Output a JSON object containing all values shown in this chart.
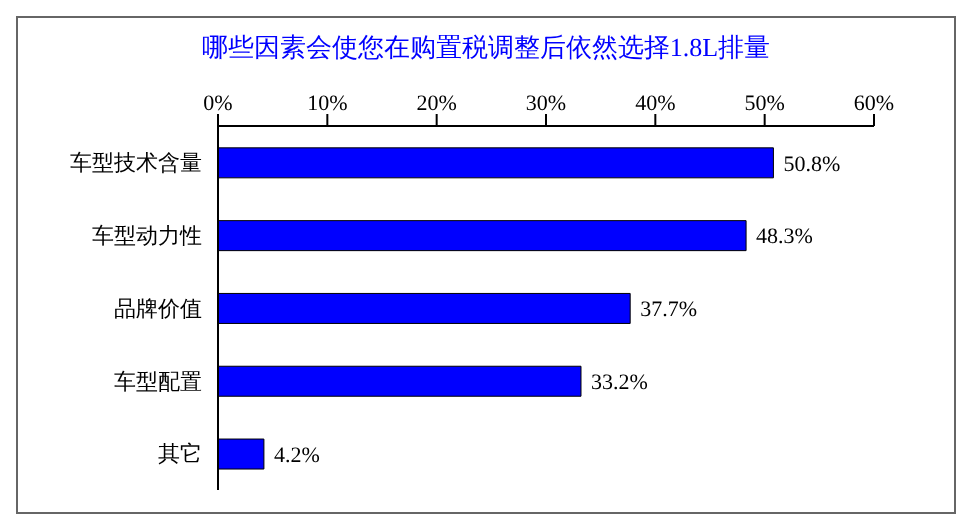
{
  "chart_data": {
    "type": "bar",
    "orientation": "horizontal",
    "title": "哪些因素会使您在购置税调整后依然选择1.8L排量",
    "categories": [
      "车型技术含量",
      "车型动力性",
      "品牌价值",
      "车型配置",
      "其它"
    ],
    "values": [
      50.8,
      48.3,
      37.7,
      33.2,
      4.2
    ],
    "value_labels": [
      "50.8%",
      "48.3%",
      "37.7%",
      "33.2%",
      "4.2%"
    ],
    "color": "#0000ff",
    "xlim": [
      0,
      60
    ],
    "xticks": [
      {
        "value": 0,
        "label": "0%"
      },
      {
        "value": 10,
        "label": "10%"
      },
      {
        "value": 20,
        "label": "20%"
      },
      {
        "value": 30,
        "label": "30%"
      },
      {
        "value": 40,
        "label": "40%"
      },
      {
        "value": 50,
        "label": "50%"
      },
      {
        "value": 60,
        "label": "60%"
      }
    ]
  }
}
